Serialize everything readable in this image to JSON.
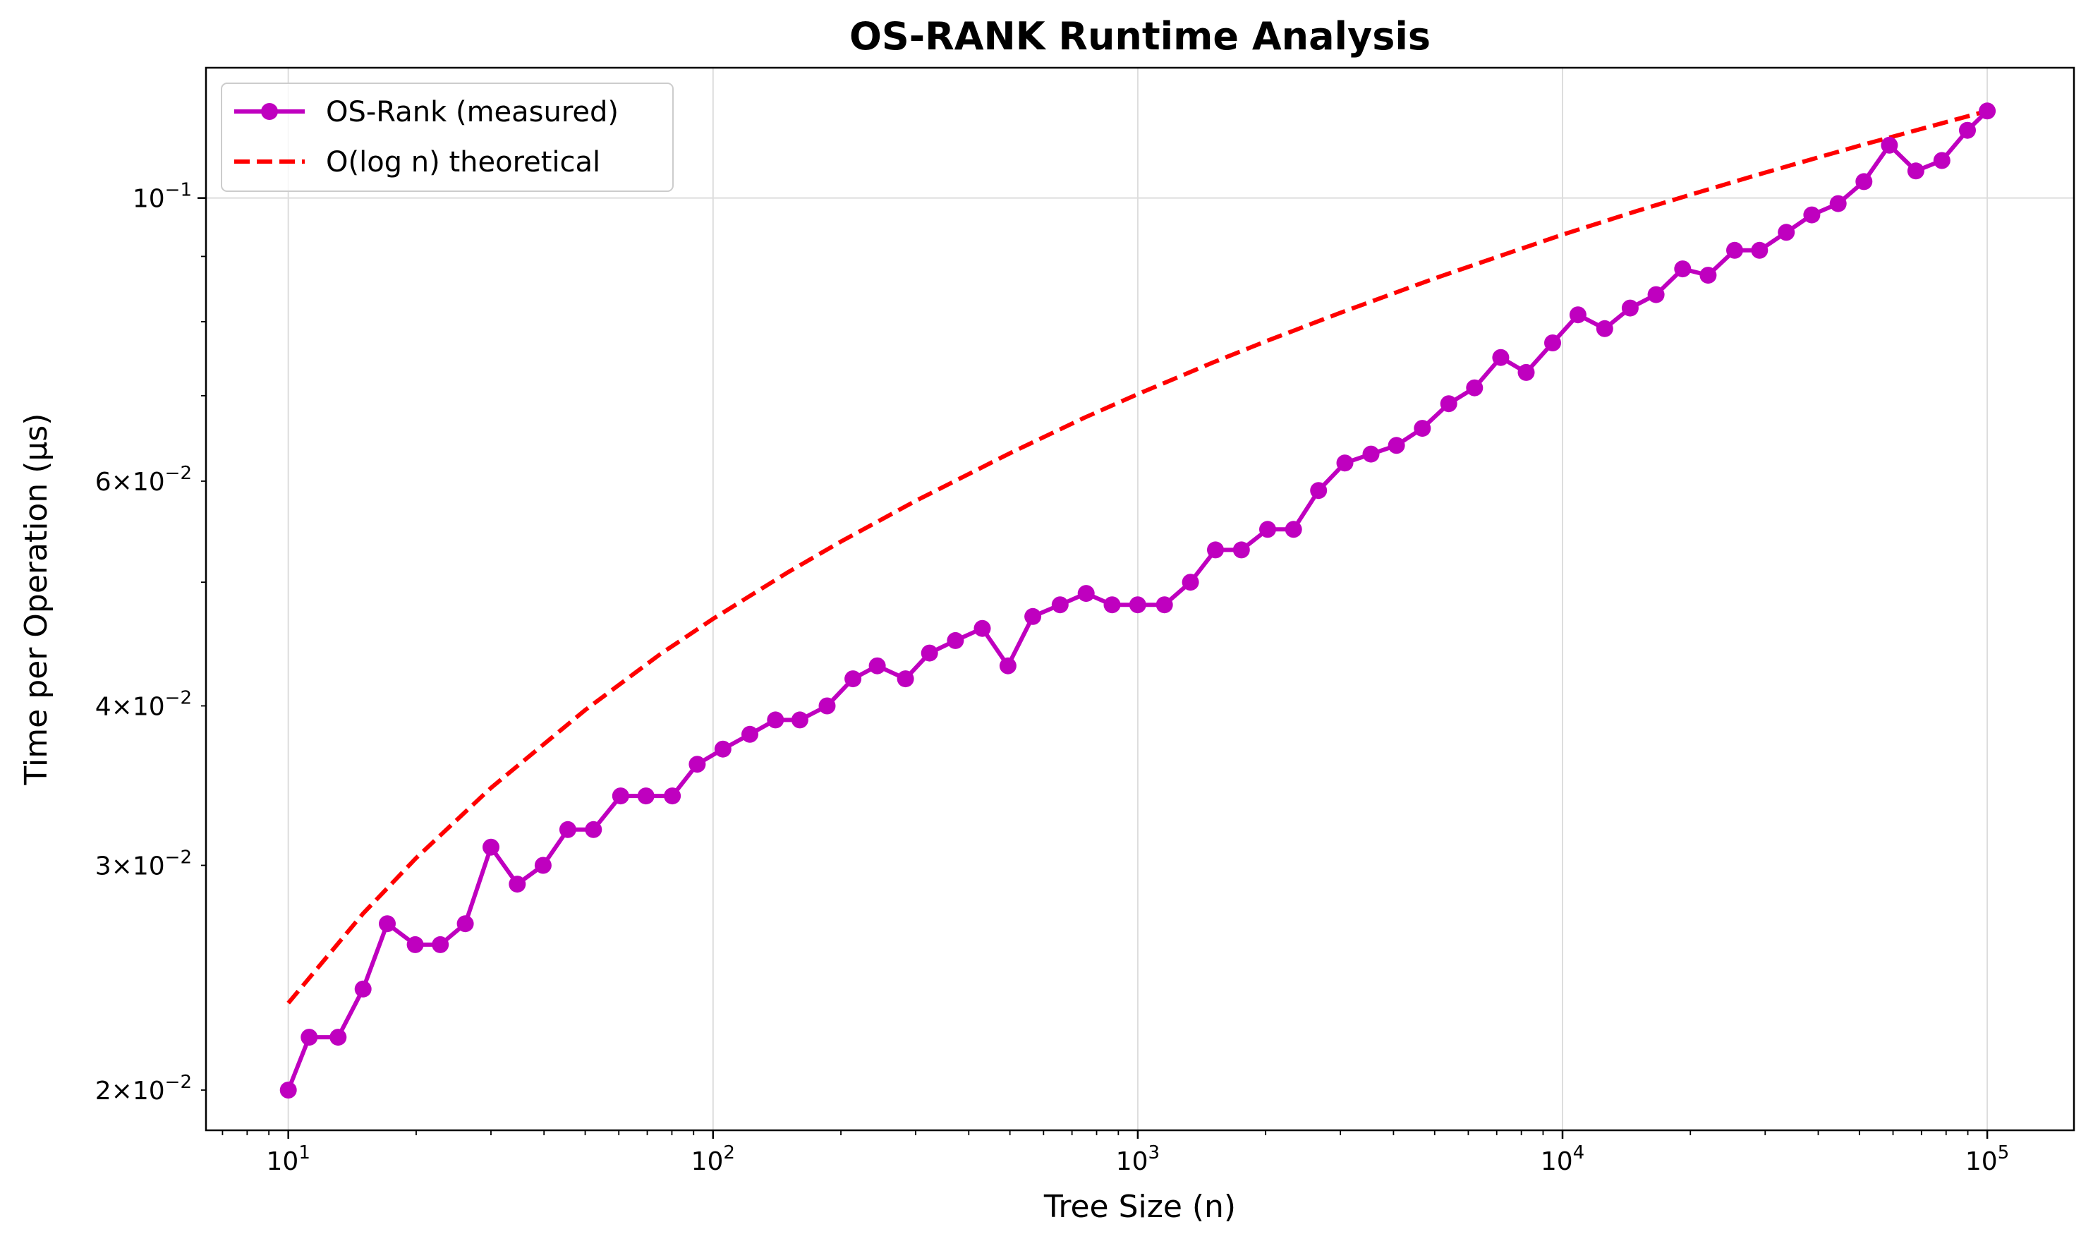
{
  "chart_data": {
    "type": "line",
    "title": "OS-RANK Runtime Analysis",
    "xlabel": "Tree Size (n)",
    "ylabel": "Time per Operation (μs)",
    "xscale": "log",
    "yscale": "log",
    "xlim": [
      6.4,
      160000
    ],
    "ylim": [
      0.0186,
      0.1265
    ],
    "grid": true,
    "legend_position": "top-left",
    "x_ticks": [
      {
        "value": 10,
        "base": "10",
        "exp": "1"
      },
      {
        "value": 100,
        "base": "10",
        "exp": "2"
      },
      {
        "value": 1000,
        "base": "10",
        "exp": "3"
      },
      {
        "value": 10000,
        "base": "10",
        "exp": "4"
      },
      {
        "value": 100000,
        "base": "10",
        "exp": "5"
      }
    ],
    "y_ticks": [
      {
        "value": 0.1,
        "mant": "",
        "base": "10",
        "exp": "−1"
      },
      {
        "value": 0.06,
        "mant": "6×",
        "base": "10",
        "exp": "−2"
      },
      {
        "value": 0.04,
        "mant": "4×",
        "base": "10",
        "exp": "−2"
      },
      {
        "value": 0.03,
        "mant": "3×",
        "base": "10",
        "exp": "−2"
      },
      {
        "value": 0.02,
        "mant": "2×",
        "base": "10",
        "exp": "−2"
      }
    ],
    "series": [
      {
        "name": "OS-Rank (measured)",
        "color": "#bf00bf",
        "style": "solid-with-markers",
        "x": [
          10,
          11.2,
          13.1,
          15.0,
          17.1,
          19.9,
          22.8,
          26.1,
          30.0,
          34.6,
          39.8,
          45.5,
          52.3,
          60.6,
          69.5,
          80.2,
          91.8,
          105.5,
          122.1,
          140.3,
          160.1,
          185.6,
          213.5,
          243.6,
          283.8,
          323.4,
          372.1,
          430.5,
          494.7,
          566.1,
          656.3,
          755.7,
          869.9,
          999.5,
          1155.6,
          1330.8,
          1523.6,
          1753.6,
          2021.8,
          2326.6,
          2664.6,
          3073.3,
          3540.1,
          4065.2,
          4677.0,
          5397.4,
          6206.2,
          7154.5,
          8213.0,
          9479.2,
          10873.2,
          12567.5,
          14429.7,
          16602.4,
          19178.2,
          22015.0,
          25420.6,
          29102.8,
          33633.8,
          38638.4,
          44548.4,
          51251.8,
          58837.0,
          67904.9,
          78186.2,
          89803.2,
          100000
        ],
        "y": [
          0.02,
          0.022,
          0.022,
          0.024,
          0.027,
          0.026,
          0.026,
          0.027,
          0.031,
          0.029,
          0.03,
          0.032,
          0.032,
          0.034,
          0.034,
          0.034,
          0.036,
          0.037,
          0.038,
          0.039,
          0.039,
          0.04,
          0.042,
          0.043,
          0.042,
          0.044,
          0.045,
          0.046,
          0.043,
          0.047,
          0.048,
          0.049,
          0.048,
          0.048,
          0.048,
          0.05,
          0.053,
          0.053,
          0.055,
          0.055,
          0.059,
          0.062,
          0.063,
          0.064,
          0.066,
          0.069,
          0.071,
          0.075,
          0.073,
          0.077,
          0.081,
          0.079,
          0.082,
          0.084,
          0.088,
          0.087,
          0.091,
          0.091,
          0.094,
          0.097,
          0.099,
          0.103,
          0.11,
          0.105,
          0.107,
          0.113,
          0.117
        ]
      },
      {
        "name": "O(log n) theoretical",
        "color": "#ff0000",
        "style": "dashed",
        "x": [
          10,
          15,
          20,
          30,
          50,
          75,
          100,
          150,
          200,
          300,
          500,
          750,
          1000,
          1500,
          2000,
          3000,
          5000,
          7500,
          10000,
          15000,
          20000,
          30000,
          50000,
          75000,
          100000
        ],
        "y": [
          0.0234,
          0.0275,
          0.0304,
          0.0345,
          0.0397,
          0.0439,
          0.0468,
          0.0509,
          0.0538,
          0.0579,
          0.0631,
          0.0673,
          0.0702,
          0.0743,
          0.0772,
          0.0813,
          0.0865,
          0.0906,
          0.0936,
          0.0977,
          0.1006,
          0.1047,
          0.1099,
          0.114,
          0.117
        ]
      }
    ]
  }
}
